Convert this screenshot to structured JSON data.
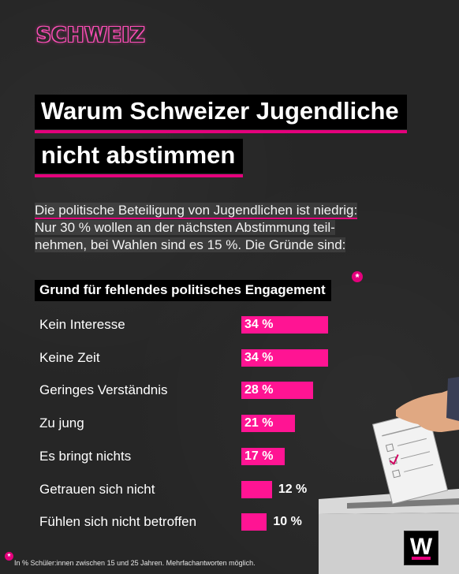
{
  "brand": "SCHWEIZ",
  "title_lines": [
    "Warum Schweizer Jugendliche",
    "nicht abstimmen"
  ],
  "intro_lines": [
    "Die politische Beteiligung von Jugendlichen ist niedrig:",
    "Nur 30 % wollen an der nächsten Abstimmung teil-",
    "nehmen, bei Wahlen sind es 15 %. Die Gründe sind:"
  ],
  "chart_data": {
    "type": "bar",
    "orientation": "horizontal",
    "title": "Grund für fehlendes politisches Engagement",
    "title_marker": "*",
    "categories": [
      "Kein Interesse",
      "Keine Zeit",
      "Geringes Verständnis",
      "Zu jung",
      "Es bringt nichts",
      "Getrauen sich nicht",
      "Fühlen sich nicht betroffen"
    ],
    "values": [
      34,
      34,
      28,
      21,
      17,
      12,
      10
    ],
    "value_labels": [
      "34 %",
      "34 %",
      "28 %",
      "21 %",
      "17 %",
      "12 %",
      "10 %"
    ],
    "unit": "%",
    "bar_color": "#ff1493",
    "grid": false,
    "legend": "none"
  },
  "footnote_marker": "*",
  "footnote": "In % Schüler:innen zwischen 15 und 25 Jahren. Mehrfachantworten möglich.",
  "logo_letter": "W",
  "colors": {
    "background": "#262626",
    "accent": "#e4007c",
    "bar": "#ff1493",
    "title_bg": "#000000"
  }
}
